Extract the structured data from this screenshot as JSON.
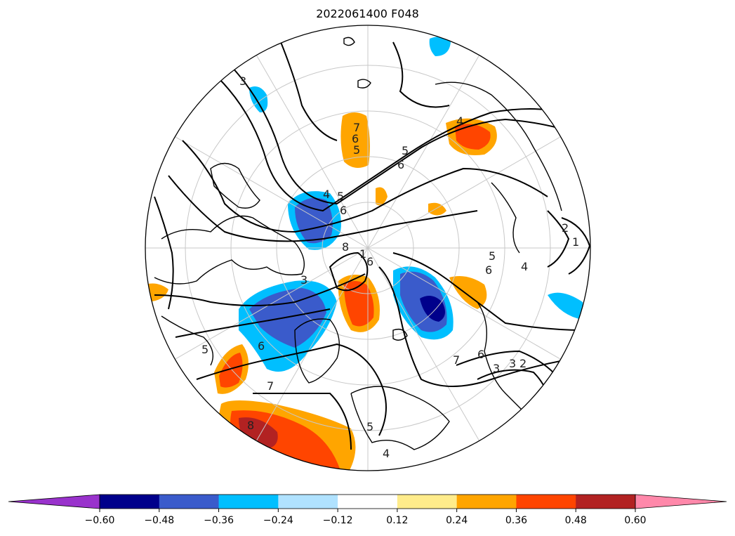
{
  "title": "2022061400 F048",
  "contour_labels": [
    "3",
    "7",
    "6",
    "5",
    "4",
    "5",
    "6",
    "5",
    "6",
    "8",
    "4",
    "3",
    "1",
    "2",
    "3",
    "4",
    "5",
    "6",
    "7",
    "8",
    "6",
    "5",
    "7",
    "6",
    "3",
    "2",
    "5",
    "4",
    "1",
    "6"
  ],
  "colorbar": {
    "colors": [
      "#9932CC",
      "#00008B",
      "#3A5BCB",
      "#00BFFF",
      "#B0E2FF",
      "#FFFFFF",
      "#FFEC8B",
      "#FFA500",
      "#FF4500",
      "#B22222",
      "#FF88AA"
    ],
    "tick_labels": [
      "−0.60",
      "−0.48",
      "−0.36",
      "−0.24",
      "−0.12",
      "0.12",
      "0.24",
      "0.36",
      "0.48",
      "0.60"
    ],
    "extend": "both"
  }
}
